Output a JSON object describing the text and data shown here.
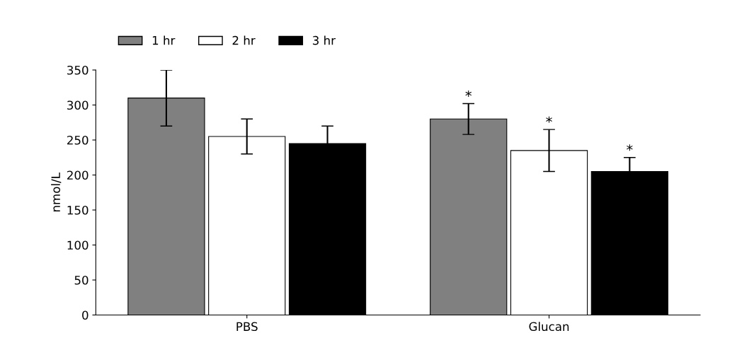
{
  "chart_data": {
    "type": "bar",
    "ylabel": "nmol/L",
    "categories": [
      "PBS",
      "Glucan"
    ],
    "series": [
      {
        "name": "1 hr",
        "color": "#808080",
        "values": [
          310,
          280
        ],
        "errors": [
          40,
          22
        ],
        "value_labels": [
          null,
          "*"
        ]
      },
      {
        "name": "2 hr",
        "color": "#ffffff",
        "values": [
          255,
          235
        ],
        "errors": [
          25,
          30
        ],
        "value_labels": [
          null,
          "*"
        ]
      },
      {
        "name": "3 hr",
        "color": "#000000",
        "values": [
          245,
          205
        ],
        "errors": [
          25,
          20
        ],
        "value_labels": [
          null,
          "*"
        ]
      }
    ],
    "ylim": [
      0,
      350
    ],
    "yticks": [
      0,
      50,
      100,
      150,
      200,
      250,
      300,
      350
    ],
    "grid": false,
    "legend": "top"
  }
}
